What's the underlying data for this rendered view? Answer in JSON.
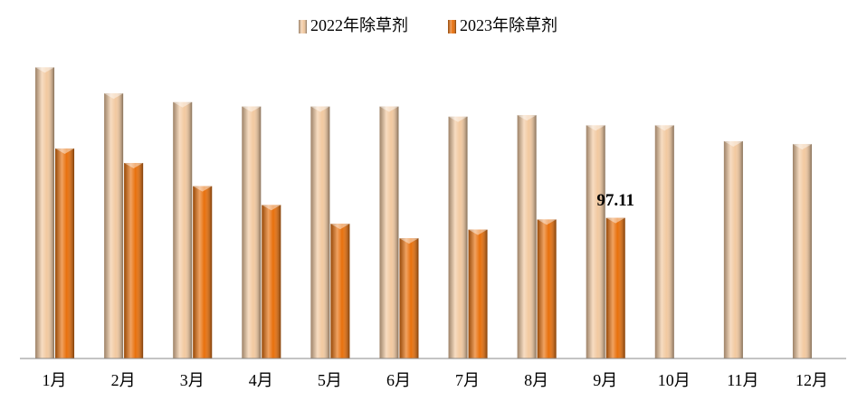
{
  "chart_data": {
    "type": "bar",
    "categories": [
      "1月",
      "2月",
      "3月",
      "4月",
      "5月",
      "6月",
      "7月",
      "8月",
      "9月",
      "10月",
      "11月",
      "12月"
    ],
    "series": [
      {
        "name": "2022年除草剂",
        "color": "#f2c9a0",
        "values": [
          201,
          183,
          177,
          174,
          174,
          174,
          167,
          168,
          161,
          161,
          150,
          148
        ]
      },
      {
        "name": "2023年除草剂",
        "color": "#e8700c",
        "values": [
          145,
          135,
          119,
          106,
          93,
          83,
          89,
          96,
          97.11,
          null,
          null,
          null
        ],
        "value_labels": [
          null,
          null,
          null,
          null,
          null,
          null,
          null,
          null,
          "97.11",
          null,
          null,
          null
        ]
      }
    ],
    "ylim": [
      0,
      210
    ],
    "legend": "top"
  }
}
